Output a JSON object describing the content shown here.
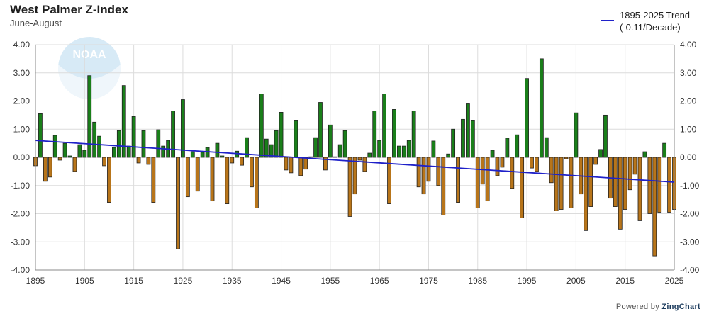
{
  "chart_data": {
    "type": "bar",
    "title": "West Palmer Z-Index",
    "subtitle": "June-August",
    "ylim": [
      -4,
      4
    ],
    "xlim": [
      1895,
      2025
    ],
    "yticks": [
      "4.00",
      "3.00",
      "2.00",
      "1.00",
      "0.00",
      "-1.00",
      "-2.00",
      "-3.00",
      "-4.00"
    ],
    "xticks": [
      "1895",
      "1905",
      "1915",
      "1925",
      "1935",
      "1945",
      "1955",
      "1965",
      "1975",
      "1985",
      "1995",
      "2005",
      "2015",
      "2025"
    ],
    "grid": true,
    "legend_position": "top-right",
    "positive_color": "#1a7f1a",
    "negative_color": "#b8751a",
    "trend_color": "#1f21c9",
    "x": [
      1895,
      1896,
      1897,
      1898,
      1899,
      1900,
      1901,
      1902,
      1903,
      1904,
      1905,
      1906,
      1907,
      1908,
      1909,
      1910,
      1911,
      1912,
      1913,
      1914,
      1915,
      1916,
      1917,
      1918,
      1919,
      1920,
      1921,
      1922,
      1923,
      1924,
      1925,
      1926,
      1927,
      1928,
      1929,
      1930,
      1931,
      1932,
      1933,
      1934,
      1935,
      1936,
      1937,
      1938,
      1939,
      1940,
      1941,
      1942,
      1943,
      1944,
      1945,
      1946,
      1947,
      1948,
      1949,
      1950,
      1951,
      1952,
      1953,
      1954,
      1955,
      1956,
      1957,
      1958,
      1959,
      1960,
      1961,
      1962,
      1963,
      1964,
      1965,
      1966,
      1967,
      1968,
      1969,
      1970,
      1971,
      1972,
      1973,
      1974,
      1975,
      1976,
      1977,
      1978,
      1979,
      1980,
      1981,
      1982,
      1983,
      1984,
      1985,
      1986,
      1987,
      1988,
      1989,
      1990,
      1991,
      1992,
      1993,
      1994,
      1995,
      1996,
      1997,
      1998,
      1999,
      2000,
      2001,
      2002,
      2003,
      2004,
      2005,
      2006,
      2007,
      2008,
      2009,
      2010,
      2011,
      2012,
      2013,
      2014,
      2015,
      2016,
      2017,
      2018,
      2019,
      2020,
      2021,
      2022,
      2023,
      2024,
      2025
    ],
    "values": [
      -0.3,
      1.55,
      -0.85,
      -0.7,
      0.78,
      -0.1,
      0.5,
      0.05,
      -0.5,
      0.45,
      0.25,
      2.9,
      1.25,
      0.75,
      -0.3,
      -1.6,
      0.35,
      0.95,
      2.55,
      0.4,
      1.45,
      -0.2,
      0.95,
      -0.25,
      -1.6,
      0.98,
      0.4,
      0.6,
      1.65,
      -3.25,
      2.05,
      -1.4,
      0.2,
      -1.2,
      0.18,
      0.35,
      -1.55,
      0.5,
      0.05,
      -1.65,
      -0.2,
      0.22,
      -0.28,
      0.7,
      -1.05,
      -1.8,
      2.25,
      0.65,
      0.45,
      0.95,
      1.6,
      -0.45,
      -0.55,
      1.3,
      -0.65,
      -0.42,
      0.02,
      0.7,
      1.95,
      -0.45,
      1.15,
      0.02,
      0.45,
      0.95,
      -2.1,
      -1.3,
      -0.1,
      -0.5,
      0.15,
      1.65,
      0.6,
      2.25,
      -1.65,
      1.7,
      0.4,
      0.4,
      0.6,
      1.65,
      -1.05,
      -1.3,
      -0.85,
      0.58,
      -1.0,
      -2.05,
      0.12,
      1.0,
      -1.6,
      1.35,
      1.9,
      1.3,
      -1.8,
      -0.95,
      -1.55,
      0.25,
      -0.65,
      -0.35,
      0.68,
      -1.1,
      0.8,
      -2.15,
      2.8,
      -0.38,
      -0.5,
      3.5,
      0.7,
      -0.9,
      -1.9,
      -1.85,
      -0.05,
      -1.8,
      1.58,
      -1.3,
      -2.6,
      -1.75,
      -0.25,
      0.28,
      1.5,
      -1.45,
      -1.75,
      -2.55,
      -1.85,
      -1.15,
      -0.6,
      -2.25,
      0.2,
      -2.0,
      -3.5,
      -1.95,
      0.5,
      -1.95,
      -1.85
    ],
    "series": [
      {
        "name": "",
        "type": "bar"
      },
      {
        "name": "1895-2025 Trend",
        "label_line2": "(-0.11/Decade)",
        "type": "line",
        "start": [
          1895,
          0.6
        ],
        "end": [
          2025,
          -0.88
        ]
      }
    ]
  },
  "credit": {
    "prefix": "Powered by",
    "brand": "ZingChart"
  },
  "logo_text": "NOAA"
}
